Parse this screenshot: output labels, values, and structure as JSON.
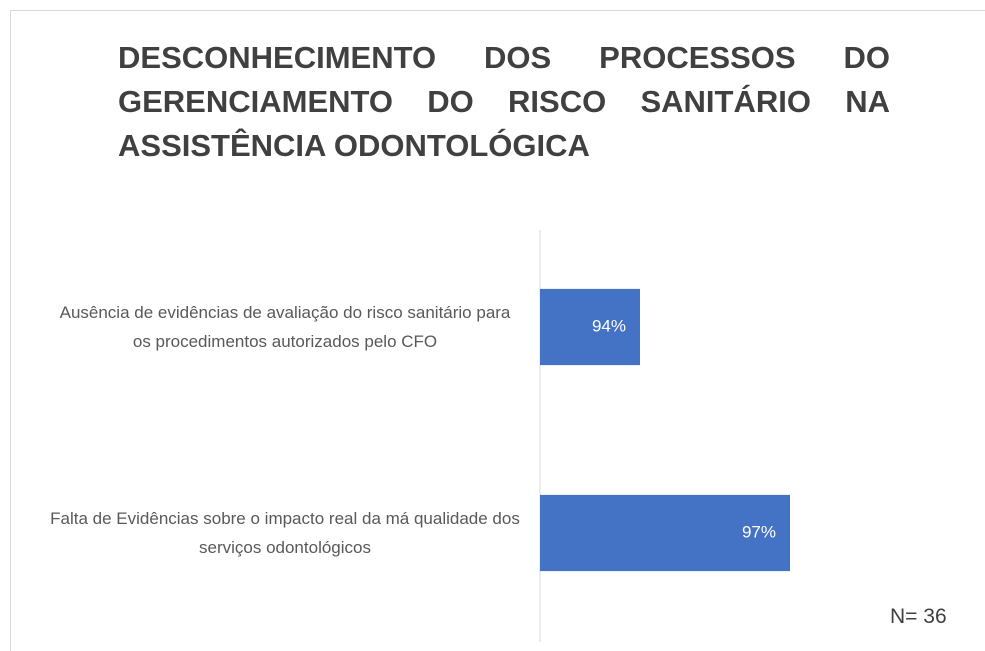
{
  "chart_data": {
    "type": "bar",
    "orientation": "horizontal",
    "title": "DESCONHECIMENTO DOS PROCESSOS DO GERENCIAMENTO DO RISCO SANITÁRIO NA ASSISTÊNCIA ODONTOLÓGICA",
    "categories": [
      "Ausência de evidências de avaliação do risco sanitário para os procedimentos autorizados pelo CFO",
      "Falta de Evidências  sobre o impacto real da má qualidade dos serviços odontológicos"
    ],
    "values": [
      94,
      97
    ],
    "value_labels": [
      "94%",
      "97%"
    ],
    "color": "#4472c4",
    "xlim": [
      92,
      100
    ],
    "annotation": "N= 36"
  }
}
